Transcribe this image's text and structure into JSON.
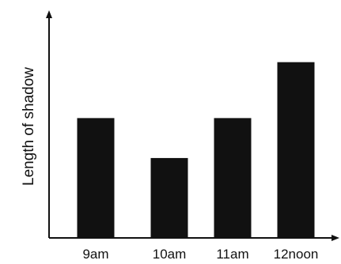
{
  "chart_data": {
    "type": "bar",
    "title": "",
    "xlabel": "",
    "ylabel": "Length of shadow",
    "categories": [
      "9am",
      "10am",
      "11am",
      "12noon"
    ],
    "values": [
      3,
      2,
      3,
      4.4
    ],
    "ylim": [
      0,
      5.6
    ],
    "grid": false,
    "legend": "none",
    "y_ticks_shown": false,
    "bar_color": "#111111",
    "axis_color": "#111111"
  }
}
